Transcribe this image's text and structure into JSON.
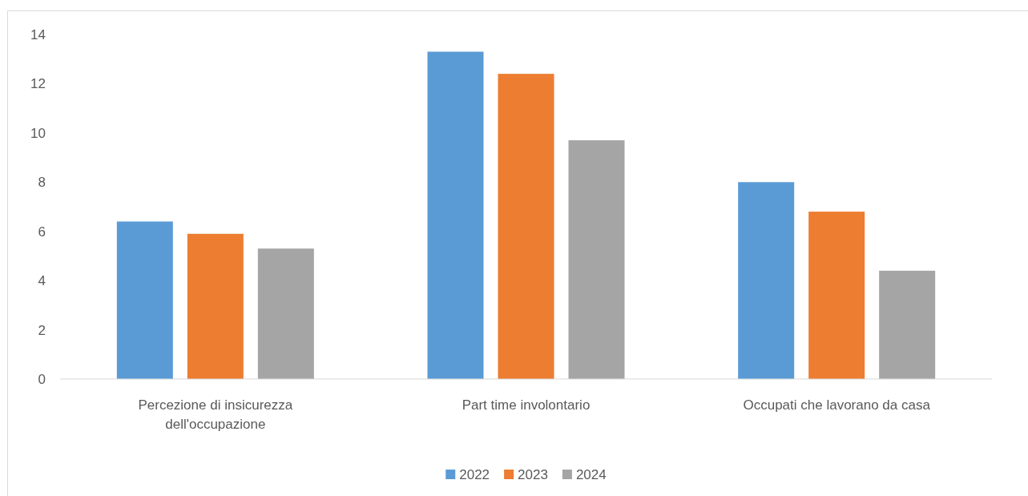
{
  "chart_data": {
    "type": "bar",
    "categories": [
      "Percezione di insicurezza dell'occupazione",
      "Part time involontario",
      "Occupati che lavorano da casa"
    ],
    "series": [
      {
        "name": "2022",
        "color": "#5b9bd5",
        "values": [
          6.4,
          13.3,
          8.0
        ]
      },
      {
        "name": "2023",
        "color": "#ed7d31",
        "values": [
          5.9,
          12.4,
          6.8
        ]
      },
      {
        "name": "2024",
        "color": "#a5a5a5",
        "values": [
          5.3,
          9.7,
          4.4
        ]
      }
    ],
    "ylim": [
      0,
      14
    ],
    "yticks": [
      0,
      2,
      4,
      6,
      8,
      10,
      12,
      14
    ],
    "grid": false,
    "legend": "bottom"
  }
}
